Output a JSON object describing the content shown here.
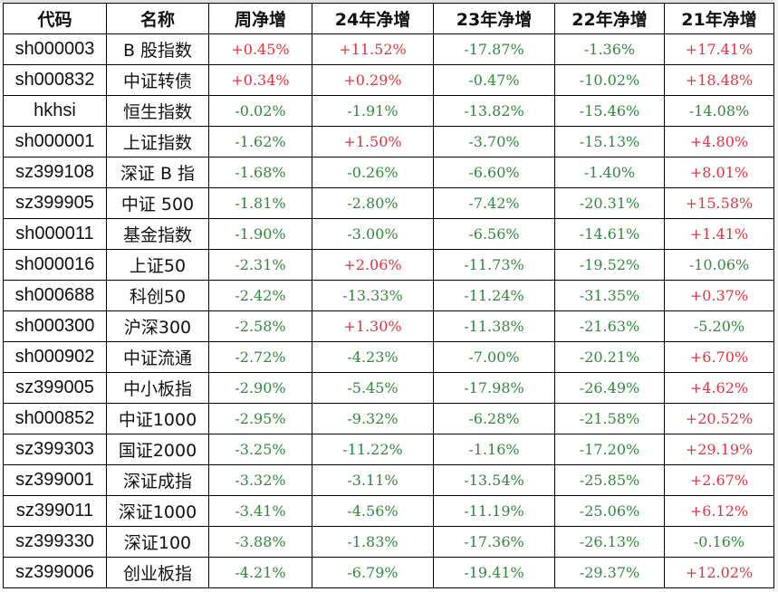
{
  "colors": {
    "positive": "#e8313d",
    "negative": "#2f8a3b"
  },
  "headers": [
    "代码",
    "名称",
    "周净增",
    "24年净增",
    "23年净增",
    "22年净增",
    "21年净增"
  ],
  "rows": [
    {
      "code": "sh000003",
      "name": "B 股指数",
      "values": [
        "+0.45%",
        "+11.52%",
        "-17.87%",
        "-1.36%",
        "+17.41%"
      ]
    },
    {
      "code": "sh000832",
      "name": "中证转债",
      "values": [
        "+0.34%",
        "+0.29%",
        "-0.47%",
        "-10.02%",
        "+18.48%"
      ]
    },
    {
      "code": "hkhsi",
      "name": "恒生指数",
      "values": [
        "-0.02%",
        "-1.91%",
        "-13.82%",
        "-15.46%",
        "-14.08%"
      ]
    },
    {
      "code": "sh000001",
      "name": "上证指数",
      "values": [
        "-1.62%",
        "+1.50%",
        "-3.70%",
        "-15.13%",
        "+4.80%"
      ]
    },
    {
      "code": "sz399108",
      "name": "深证 B 指",
      "values": [
        "-1.68%",
        "-0.26%",
        "-6.60%",
        "-1.40%",
        "+8.01%"
      ]
    },
    {
      "code": "sz399905",
      "name": "中证 500",
      "values": [
        "-1.81%",
        "-2.80%",
        "-7.42%",
        "-20.31%",
        "+15.58%"
      ]
    },
    {
      "code": "sh000011",
      "name": "基金指数",
      "values": [
        "-1.90%",
        "-3.00%",
        "-6.56%",
        "-14.61%",
        "+1.41%"
      ]
    },
    {
      "code": "sh000016",
      "name": "上证50",
      "values": [
        "-2.31%",
        "+2.06%",
        "-11.73%",
        "-19.52%",
        "-10.06%"
      ]
    },
    {
      "code": "sh000688",
      "name": "科创50",
      "values": [
        "-2.42%",
        "-13.33%",
        "-11.24%",
        "-31.35%",
        "+0.37%"
      ]
    },
    {
      "code": "sh000300",
      "name": "沪深300",
      "values": [
        "-2.58%",
        "+1.30%",
        "-11.38%",
        "-21.63%",
        "-5.20%"
      ]
    },
    {
      "code": "sh000902",
      "name": "中证流通",
      "values": [
        "-2.72%",
        "-4.23%",
        "-7.00%",
        "-20.21%",
        "+6.70%"
      ]
    },
    {
      "code": "sz399005",
      "name": "中小板指",
      "values": [
        "-2.90%",
        "-5.45%",
        "-17.98%",
        "-26.49%",
        "+4.62%"
      ]
    },
    {
      "code": "sh000852",
      "name": "中证1000",
      "values": [
        "-2.95%",
        "-9.32%",
        "-6.28%",
        "-21.58%",
        "+20.52%"
      ]
    },
    {
      "code": "sz399303",
      "name": "国证2000",
      "values": [
        "-3.25%",
        "-11.22%",
        "-1.16%",
        "-17.20%",
        "+29.19%"
      ]
    },
    {
      "code": "sz399001",
      "name": "深证成指",
      "values": [
        "-3.32%",
        "-3.11%",
        "-13.54%",
        "-25.85%",
        "+2.67%"
      ]
    },
    {
      "code": "sz399011",
      "name": "深证1000",
      "values": [
        "-3.41%",
        "-4.56%",
        "-11.19%",
        "-25.06%",
        "+6.12%"
      ]
    },
    {
      "code": "sz399330",
      "name": "深证100",
      "values": [
        "-3.88%",
        "-1.83%",
        "-17.36%",
        "-26.13%",
        "-0.16%"
      ]
    },
    {
      "code": "sz399006",
      "name": "创业板指",
      "values": [
        "-4.21%",
        "-6.79%",
        "-19.41%",
        "-29.37%",
        "+12.02%"
      ]
    }
  ]
}
